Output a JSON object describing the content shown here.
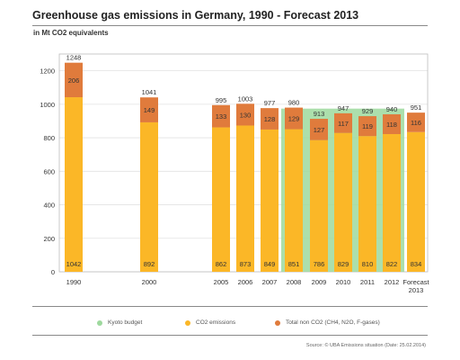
{
  "header": {
    "title": "Greenhouse gas emissions in Germany, 1990 - Forecast 2013",
    "unit": "in Mt CO2 equivalents"
  },
  "legend": [
    {
      "label": "Kyoto budget",
      "color": "#9ed99e"
    },
    {
      "label": "CO2 emissions",
      "color": "#fbb727"
    },
    {
      "label": "Total non CO2 (CH4, N2O, F-gases)",
      "color": "#e07b3c"
    }
  ],
  "source": "Source: © UBA Emissions situation (Date: 25.02.2014)",
  "chart_data": {
    "type": "bar",
    "stacked": true,
    "categories": [
      "1990",
      "2000",
      "2005",
      "2006",
      "2007",
      "2008",
      "2009",
      "2010",
      "2011",
      "2012",
      "Forecast 2013"
    ],
    "series": [
      {
        "name": "CO2 emissions",
        "color": "#fbb727",
        "values": [
          1042,
          892,
          862,
          873,
          849,
          851,
          786,
          829,
          810,
          822,
          834
        ]
      },
      {
        "name": "Total non CO2 (CH4, N2O, F-gases)",
        "color": "#e07b3c",
        "values": [
          206,
          149,
          133,
          130,
          128,
          129,
          127,
          117,
          119,
          118,
          116
        ]
      }
    ],
    "totals": [
      1248,
      1041,
      995,
      1003,
      977,
      980,
      913,
      947,
      929,
      940,
      951
    ],
    "kyoto_budget": {
      "label": "Kyoto budget",
      "value": 974,
      "categories": [
        "2008",
        "2009",
        "2010",
        "2011",
        "2012"
      ],
      "color": "#9ed99e"
    },
    "ylim": [
      0,
      1300
    ],
    "yticks": [
      0,
      200,
      400,
      600,
      800,
      1000,
      1200
    ],
    "grid": true,
    "legend_position": "bottom"
  }
}
